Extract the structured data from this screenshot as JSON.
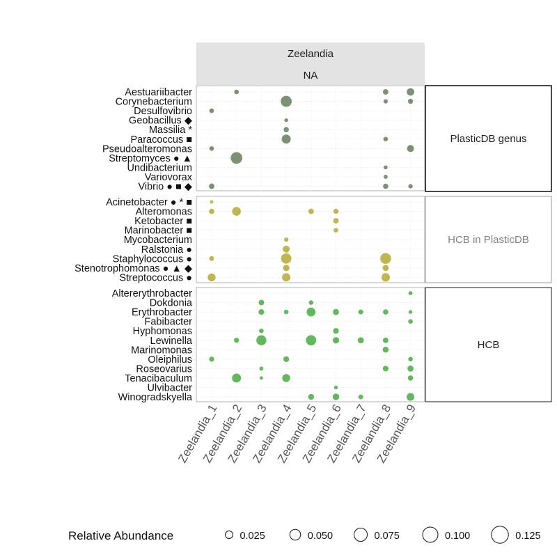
{
  "chart_data": {
    "type": "bubble",
    "strip_top": "Zeelandia",
    "strip_sub": "NA",
    "samples": [
      "Zeelandia_1",
      "Zeelandia_2",
      "Zeelandia_3",
      "Zeelandia_4",
      "Zeelandia_5",
      "Zeelandia_6",
      "Zeelandia_7",
      "Zeelandia_8",
      "Zeelandia_9"
    ],
    "size_range": [
      0.0,
      0.13
    ],
    "legend": {
      "title": "Relative Abundance",
      "values": [
        0.025,
        0.05,
        0.075,
        0.1,
        0.125
      ],
      "labels": [
        "0.025",
        "0.050",
        "0.075",
        "0.100",
        "0.125"
      ]
    },
    "panels": [
      {
        "label": "PlasticDB genus",
        "color": "#758b6c",
        "label_color": "#222222",
        "genera": [
          "Aestuariibacter",
          "Corynebacterium",
          "Desulfovibrio",
          "Geobacillus ◆",
          "Massilia *",
          "Paracoccus ■",
          "Pseudoalteromonas",
          "Streptomyces ● ▲",
          "Undibacterium",
          "Variovorax",
          "Vibrio ● ■ ◆"
        ],
        "points": [
          {
            "genus": 0,
            "sample": 1,
            "abundance": 0.009
          },
          {
            "genus": 0,
            "sample": 7,
            "abundance": 0.013
          },
          {
            "genus": 0,
            "sample": 8,
            "abundance": 0.024
          },
          {
            "genus": 1,
            "sample": 3,
            "abundance": 0.052
          },
          {
            "genus": 1,
            "sample": 7,
            "abundance": 0.008
          },
          {
            "genus": 1,
            "sample": 8,
            "abundance": 0.011
          },
          {
            "genus": 2,
            "sample": 0,
            "abundance": 0.009
          },
          {
            "genus": 3,
            "sample": 3,
            "abundance": 0.006
          },
          {
            "genus": 4,
            "sample": 3,
            "abundance": 0.012
          },
          {
            "genus": 5,
            "sample": 3,
            "abundance": 0.035
          },
          {
            "genus": 5,
            "sample": 7,
            "abundance": 0.009
          },
          {
            "genus": 6,
            "sample": 0,
            "abundance": 0.009
          },
          {
            "genus": 6,
            "sample": 8,
            "abundance": 0.021
          },
          {
            "genus": 7,
            "sample": 1,
            "abundance": 0.058
          },
          {
            "genus": 8,
            "sample": 7,
            "abundance": 0.007
          },
          {
            "genus": 9,
            "sample": 7,
            "abundance": 0.007
          },
          {
            "genus": 10,
            "sample": 0,
            "abundance": 0.013
          },
          {
            "genus": 10,
            "sample": 7,
            "abundance": 0.012
          },
          {
            "genus": 10,
            "sample": 8,
            "abundance": 0.008
          }
        ]
      },
      {
        "label": "HCB in PlasticDB",
        "color": "#bcb248",
        "label_color": "#808080",
        "genera": [
          "Acinetobacter ● * ■",
          "Alteromonas",
          "Ketobacter ■",
          "Marinobacter ■",
          "Mycobacterium",
          "Ralstonia ●",
          "Staphylococcus ●",
          "Stenotrophomonas ● ▲ ◆",
          "Streptococcus ●"
        ],
        "points": [
          {
            "genus": 0,
            "sample": 0,
            "abundance": 0.005
          },
          {
            "genus": 1,
            "sample": 0,
            "abundance": 0.012
          },
          {
            "genus": 1,
            "sample": 1,
            "abundance": 0.033
          },
          {
            "genus": 1,
            "sample": 4,
            "abundance": 0.013
          },
          {
            "genus": 1,
            "sample": 5,
            "abundance": 0.011
          },
          {
            "genus": 2,
            "sample": 5,
            "abundance": 0.013
          },
          {
            "genus": 3,
            "sample": 5,
            "abundance": 0.009
          },
          {
            "genus": 4,
            "sample": 3,
            "abundance": 0.008
          },
          {
            "genus": 5,
            "sample": 3,
            "abundance": 0.021
          },
          {
            "genus": 6,
            "sample": 0,
            "abundance": 0.01
          },
          {
            "genus": 6,
            "sample": 3,
            "abundance": 0.046
          },
          {
            "genus": 6,
            "sample": 7,
            "abundance": 0.05
          },
          {
            "genus": 7,
            "sample": 3,
            "abundance": 0.018
          },
          {
            "genus": 7,
            "sample": 7,
            "abundance": 0.016
          },
          {
            "genus": 8,
            "sample": 0,
            "abundance": 0.027
          },
          {
            "genus": 8,
            "sample": 3,
            "abundance": 0.03
          },
          {
            "genus": 8,
            "sample": 7,
            "abundance": 0.031
          }
        ]
      },
      {
        "label": "HCB",
        "color": "#5ab552",
        "label_color": "#222222",
        "genera": [
          "Altererythrobacter",
          "Dokdonia",
          "Erythrobacter",
          "Fabibacter",
          "Hyphomonas",
          "Lewinella",
          "Marinomonas",
          "Oleiphilus",
          "Roseovarius",
          "Tenacibaculum",
          "Ulvibacter",
          "Winogradskyella"
        ],
        "points": [
          {
            "genus": 0,
            "sample": 8,
            "abundance": 0.007
          },
          {
            "genus": 1,
            "sample": 2,
            "abundance": 0.013
          },
          {
            "genus": 1,
            "sample": 4,
            "abundance": 0.009
          },
          {
            "genus": 2,
            "sample": 2,
            "abundance": 0.014
          },
          {
            "genus": 2,
            "sample": 3,
            "abundance": 0.009
          },
          {
            "genus": 2,
            "sample": 4,
            "abundance": 0.034
          },
          {
            "genus": 2,
            "sample": 5,
            "abundance": 0.016
          },
          {
            "genus": 2,
            "sample": 6,
            "abundance": 0.01
          },
          {
            "genus": 2,
            "sample": 7,
            "abundance": 0.012
          },
          {
            "genus": 2,
            "sample": 8,
            "abundance": 0.006
          },
          {
            "genus": 3,
            "sample": 8,
            "abundance": 0.009
          },
          {
            "genus": 4,
            "sample": 2,
            "abundance": 0.009
          },
          {
            "genus": 4,
            "sample": 5,
            "abundance": 0.014
          },
          {
            "genus": 5,
            "sample": 1,
            "abundance": 0.011
          },
          {
            "genus": 5,
            "sample": 2,
            "abundance": 0.043
          },
          {
            "genus": 5,
            "sample": 4,
            "abundance": 0.045
          },
          {
            "genus": 5,
            "sample": 5,
            "abundance": 0.018
          },
          {
            "genus": 5,
            "sample": 6,
            "abundance": 0.016
          },
          {
            "genus": 5,
            "sample": 7,
            "abundance": 0.013
          },
          {
            "genus": 6,
            "sample": 7,
            "abundance": 0.015
          },
          {
            "genus": 7,
            "sample": 0,
            "abundance": 0.011
          },
          {
            "genus": 7,
            "sample": 3,
            "abundance": 0.014
          },
          {
            "genus": 7,
            "sample": 8,
            "abundance": 0.009
          },
          {
            "genus": 8,
            "sample": 2,
            "abundance": 0.007
          },
          {
            "genus": 8,
            "sample": 7,
            "abundance": 0.014
          },
          {
            "genus": 8,
            "sample": 8,
            "abundance": 0.016
          },
          {
            "genus": 9,
            "sample": 1,
            "abundance": 0.035
          },
          {
            "genus": 9,
            "sample": 2,
            "abundance": 0.005
          },
          {
            "genus": 9,
            "sample": 3,
            "abundance": 0.027
          },
          {
            "genus": 9,
            "sample": 8,
            "abundance": 0.012
          },
          {
            "genus": 10,
            "sample": 5,
            "abundance": 0.006
          },
          {
            "genus": 11,
            "sample": 4,
            "abundance": 0.015
          },
          {
            "genus": 11,
            "sample": 5,
            "abundance": 0.019
          },
          {
            "genus": 11,
            "sample": 6,
            "abundance": 0.01
          },
          {
            "genus": 11,
            "sample": 8,
            "abundance": 0.026
          }
        ]
      }
    ]
  }
}
